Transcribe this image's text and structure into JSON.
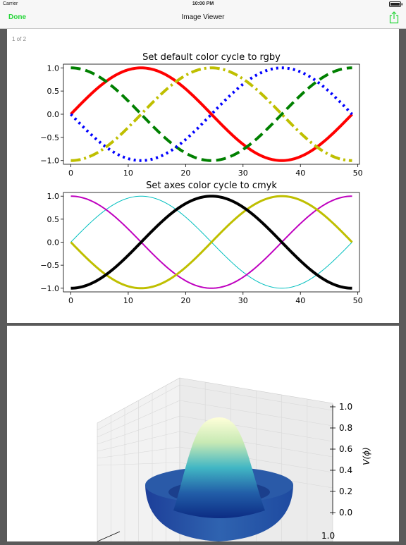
{
  "status_bar": {
    "carrier": "Carrier",
    "time": "10:00 PM"
  },
  "nav": {
    "done_label": "Done",
    "title": "Image Viewer",
    "share_icon": "share-icon"
  },
  "viewer": {
    "page_counter": "1 of 2"
  },
  "colors": {
    "accent": "#27d63a"
  },
  "chart_data": [
    {
      "type": "line",
      "title": "Set default color cycle to rgby",
      "x_ticks": [
        "0",
        "10",
        "20",
        "30",
        "40",
        "50"
      ],
      "y_ticks": [
        "−1.0",
        "−0.5",
        "0.0",
        "0.5",
        "1.0"
      ],
      "xlim": [
        0,
        49
      ],
      "ylim": [
        -1.08,
        1.08
      ],
      "x": "0..49 step 1",
      "series": [
        {
          "color": "#ff0000",
          "linestyle": "solid",
          "function": "sin(2*pi*x/49)"
        },
        {
          "color": "#008000",
          "linestyle": "dashed",
          "function": "cos(2*pi*x/49)"
        },
        {
          "color": "#0000ff",
          "linestyle": "dotted",
          "function": "-sin(2*pi*x/49)"
        },
        {
          "color": "#bfbf00",
          "linestyle": "dashdot",
          "function": "-cos(2*pi*x/49)"
        }
      ]
    },
    {
      "type": "line",
      "title": "Set axes color cycle to cmyk",
      "x_ticks": [
        "0",
        "10",
        "20",
        "30",
        "40",
        "50"
      ],
      "y_ticks": [
        "−1.0",
        "−0.5",
        "0.0",
        "0.5",
        "1.0"
      ],
      "xlim": [
        0,
        49
      ],
      "ylim": [
        -1.08,
        1.08
      ],
      "x": "0..49 step 1",
      "series": [
        {
          "color": "#00bfbf",
          "linestyle": "solid",
          "function": "sin(2*pi*x/49)"
        },
        {
          "color": "#bf00bf",
          "linestyle": "solid",
          "function": "cos(2*pi*x/49)"
        },
        {
          "color": "#bfbf00",
          "linestyle": "solid",
          "function": "-sin(2*pi*x/49)"
        },
        {
          "color": "#000000",
          "linestyle": "solid",
          "function": "-cos(2*pi*x/49)"
        }
      ]
    },
    {
      "type": "surface3d",
      "zlabel": "V(ϕ)",
      "z_ticks": [
        "0.0",
        "0.2",
        "0.4",
        "0.6",
        "0.8",
        "1.0"
      ],
      "y_tick_visible": "1.0",
      "colormap": "YlGnBu"
    }
  ]
}
